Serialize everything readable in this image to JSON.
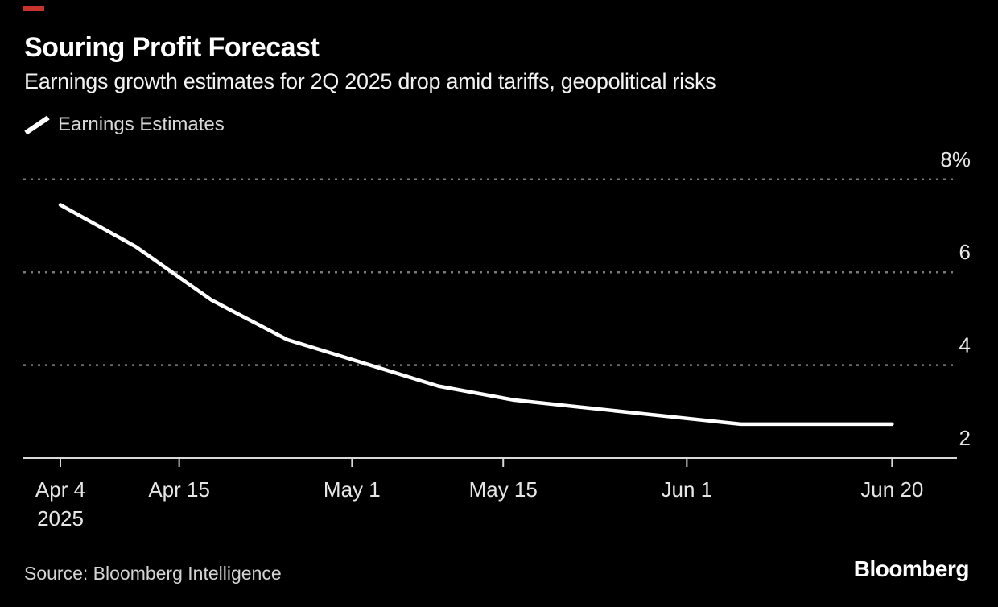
{
  "accent": {
    "red_mark_color": "#c7342b"
  },
  "header": {
    "title": "Souring Profit Forecast",
    "subtitle": "Earnings growth estimates for 2Q 2025 drop amid tariffs, geopolitical risks"
  },
  "legend": {
    "items": [
      {
        "label": "Earnings Estimates",
        "marker": "line-icon",
        "color": "#ffffff"
      }
    ]
  },
  "chart_data": {
    "type": "line",
    "title": "Souring Profit Forecast",
    "subtitle": "Earnings growth estimates for 2Q 2025 drop amid tariffs, geopolitical risks",
    "unit": "%",
    "ylim": [
      2,
      8.3
    ],
    "grid": "dotted horizontal gridlines, solid bottom axis",
    "legend_position": "top-left",
    "axis_color": "#d9d9d9",
    "grid_color": "#7a7a7a",
    "tick_label_color": "#e6e6e6",
    "background_color": "#000000",
    "y_ticks": [
      {
        "label": "8%",
        "value": 8,
        "style": "dotted"
      },
      {
        "label": "6",
        "value": 6,
        "style": "dotted"
      },
      {
        "label": "4",
        "value": 4,
        "style": "dotted"
      },
      {
        "label": "2",
        "value": 2,
        "style": "axis"
      }
    ],
    "x_ticks": [
      {
        "label": "Apr 4",
        "sublabel": "2025",
        "day": 0
      },
      {
        "label": "Apr 15",
        "day": 11
      },
      {
        "label": "May 1",
        "day": 27
      },
      {
        "label": "May 15",
        "day": 41
      },
      {
        "label": "Jun 1",
        "day": 58
      },
      {
        "label": "Jun 20",
        "day": 77
      }
    ],
    "series": [
      {
        "name": "Earnings Estimates",
        "color": "#ffffff",
        "points": [
          {
            "date": "Apr 4",
            "day": 0,
            "value": 7.45
          },
          {
            "date": "Apr 11",
            "day": 7,
            "value": 6.55
          },
          {
            "date": "Apr 18",
            "day": 14,
            "value": 5.4
          },
          {
            "date": "Apr 25",
            "day": 21,
            "value": 4.55
          },
          {
            "date": "May 9",
            "day": 35,
            "value": 3.55
          },
          {
            "date": "May 16",
            "day": 42,
            "value": 3.25
          },
          {
            "date": "May 22",
            "day": 48,
            "value": 3.1
          },
          {
            "date": "Jun 6",
            "day": 63,
            "value": 2.73
          },
          {
            "date": "Jun 20",
            "day": 77,
            "value": 2.73
          }
        ]
      }
    ]
  },
  "footer": {
    "source": "Source: Bloomberg Intelligence",
    "brand": "Bloomberg"
  }
}
